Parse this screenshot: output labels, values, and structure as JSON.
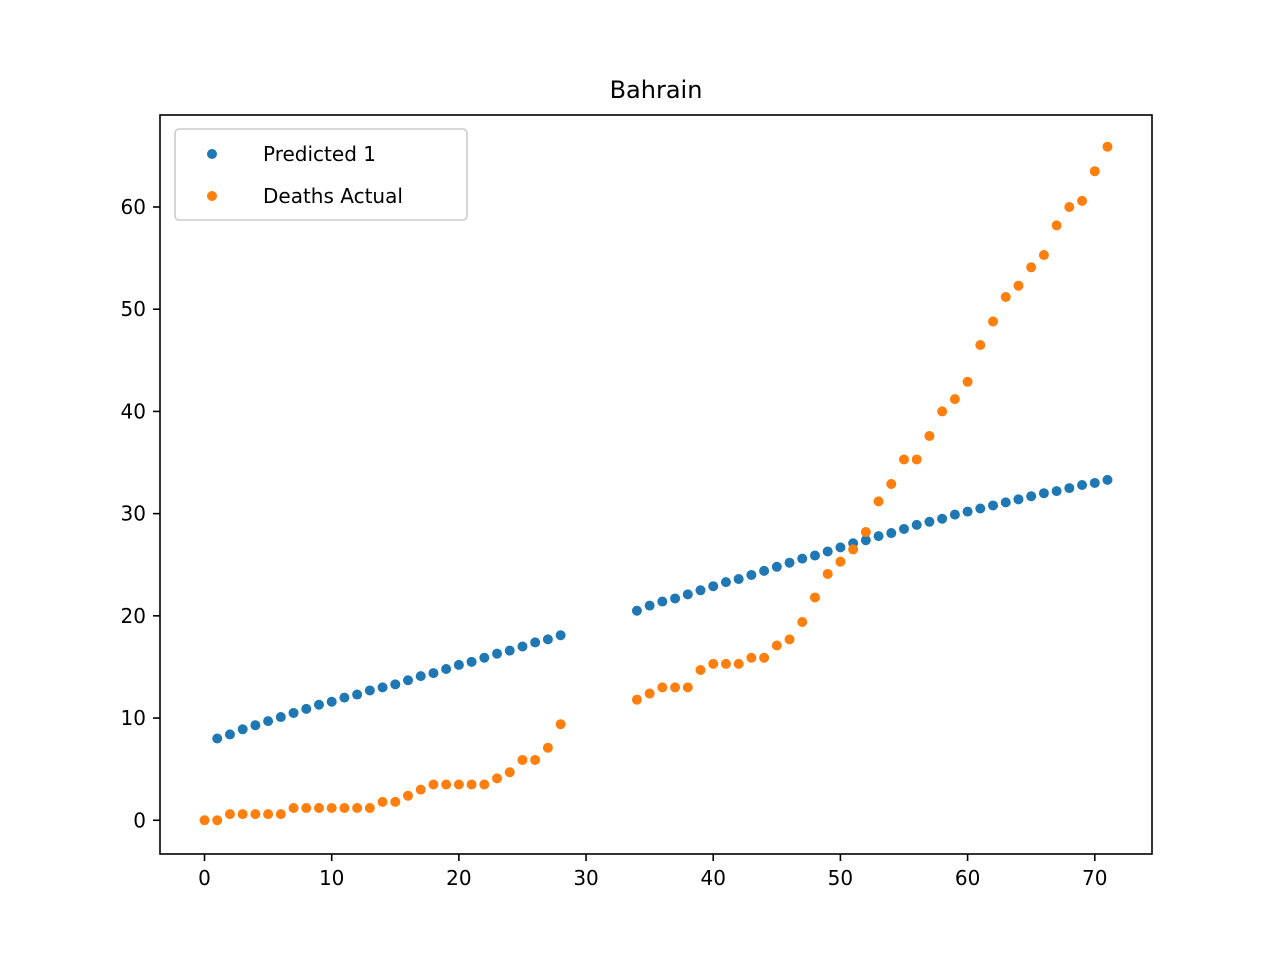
{
  "chart_data": {
    "type": "scatter",
    "title": "Bahrain",
    "xlabel": "",
    "ylabel": "",
    "xlim": [
      -3.5,
      74.5
    ],
    "ylim": [
      -3.3,
      69.0
    ],
    "xticks": [
      0,
      10,
      20,
      30,
      40,
      50,
      60,
      70
    ],
    "yticks": [
      0,
      10,
      20,
      30,
      40,
      50,
      60
    ],
    "grid": false,
    "legend_position": "top-left",
    "series": [
      {
        "name": "Predicted 1",
        "color": "#1f77b4",
        "x": [
          1,
          2,
          3,
          4,
          5,
          6,
          7,
          8,
          9,
          10,
          11,
          12,
          13,
          14,
          15,
          16,
          17,
          18,
          19,
          20,
          21,
          22,
          23,
          24,
          25,
          26,
          27,
          28,
          34,
          35,
          36,
          37,
          38,
          39,
          40,
          41,
          42,
          43,
          44,
          45,
          46,
          47,
          48,
          49,
          50,
          51,
          52,
          53,
          54,
          55,
          56,
          57,
          58,
          59,
          60,
          61,
          62,
          63,
          64,
          65,
          66,
          67,
          68,
          69,
          70,
          71
        ],
        "y": [
          8.0,
          8.4,
          8.9,
          9.3,
          9.7,
          10.1,
          10.5,
          10.9,
          11.3,
          11.6,
          12.0,
          12.3,
          12.7,
          13.0,
          13.3,
          13.7,
          14.1,
          14.4,
          14.8,
          15.2,
          15.5,
          15.9,
          16.3,
          16.6,
          17.0,
          17.4,
          17.7,
          18.1,
          20.5,
          21.0,
          21.4,
          21.7,
          22.1,
          22.5,
          22.9,
          23.3,
          23.6,
          24.0,
          24.4,
          24.8,
          25.2,
          25.6,
          25.9,
          26.3,
          26.7,
          27.1,
          27.4,
          27.8,
          28.1,
          28.5,
          28.9,
          29.2,
          29.5,
          29.9,
          30.2,
          30.5,
          30.8,
          31.1,
          31.4,
          31.7,
          32.0,
          32.2,
          32.5,
          32.8,
          33.0,
          33.3
        ]
      },
      {
        "name": "Deaths Actual",
        "color": "#ff7f0e",
        "x": [
          0,
          1,
          2,
          3,
          4,
          5,
          6,
          7,
          8,
          9,
          10,
          11,
          12,
          13,
          14,
          15,
          16,
          17,
          18,
          19,
          20,
          21,
          22,
          23,
          24,
          25,
          26,
          27,
          28,
          34,
          35,
          36,
          37,
          38,
          39,
          40,
          41,
          42,
          43,
          44,
          45,
          46,
          47,
          48,
          49,
          50,
          51,
          52,
          53,
          54,
          55,
          56,
          57,
          58,
          59,
          60,
          61,
          62,
          63,
          64,
          65,
          66,
          67,
          68,
          69,
          70,
          71
        ],
        "y": [
          0,
          0,
          0.6,
          0.6,
          0.6,
          0.6,
          0.6,
          1.2,
          1.2,
          1.2,
          1.2,
          1.2,
          1.2,
          1.2,
          1.8,
          1.8,
          2.4,
          3.0,
          3.5,
          3.5,
          3.5,
          3.5,
          3.5,
          4.1,
          4.7,
          5.9,
          5.9,
          7.1,
          9.4,
          11.8,
          12.4,
          13.0,
          13.0,
          13.0,
          14.7,
          15.3,
          15.3,
          15.3,
          15.9,
          15.9,
          17.1,
          17.7,
          19.4,
          21.8,
          24.1,
          25.3,
          26.5,
          28.2,
          31.2,
          32.9,
          35.3,
          35.3,
          37.6,
          40.0,
          41.2,
          42.9,
          46.5,
          48.8,
          51.2,
          52.3,
          54.1,
          55.3,
          58.2,
          60.0,
          60.6,
          63.5,
          65.9
        ]
      }
    ]
  }
}
